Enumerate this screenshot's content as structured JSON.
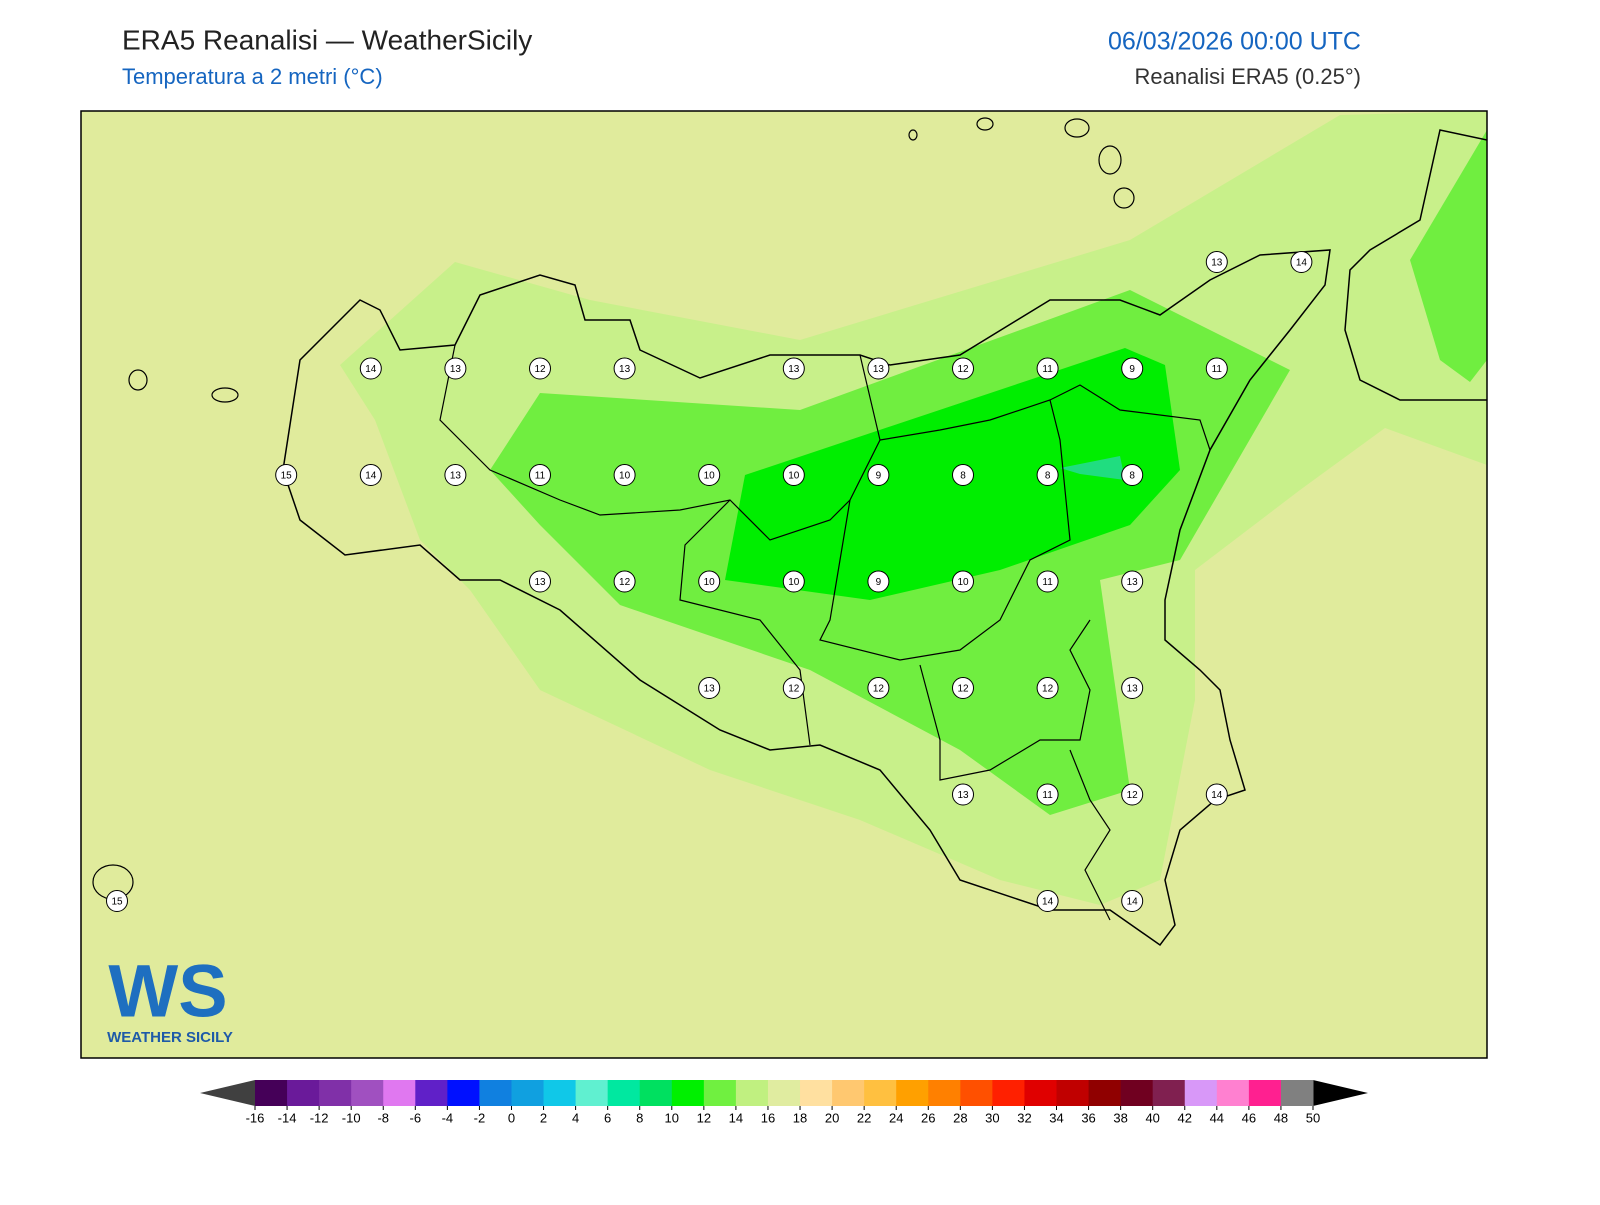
{
  "header": {
    "title": "ERA5 Reanalisi — WeatherSicily",
    "subtitle": "Temperatura a 2 metri (°C)",
    "datetime": "06/03/2026 00:00 UTC",
    "source": "Reanalisi ERA5 (0.25°)"
  },
  "stations": {
    "rows": [
      [
        null,
        null,
        null,
        null,
        null,
        null,
        null,
        null,
        null,
        null,
        null,
        null,
        null,
        13,
        14
      ],
      [
        null,
        null,
        null,
        14,
        13,
        12,
        13,
        null,
        13,
        13,
        12,
        11,
        9,
        11,
        null
      ],
      [
        null,
        null,
        15,
        14,
        13,
        11,
        10,
        10,
        10,
        9,
        8,
        8,
        8,
        null,
        null
      ],
      [
        null,
        null,
        null,
        null,
        null,
        13,
        12,
        10,
        10,
        9,
        10,
        11,
        13,
        null,
        null
      ],
      [
        null,
        null,
        null,
        null,
        null,
        null,
        null,
        13,
        12,
        12,
        12,
        12,
        13,
        null,
        null
      ],
      [
        null,
        null,
        null,
        null,
        null,
        null,
        null,
        null,
        null,
        null,
        13,
        11,
        12,
        14,
        null
      ],
      [
        15,
        null,
        null,
        null,
        null,
        null,
        null,
        null,
        null,
        null,
        null,
        14,
        14,
        null,
        null
      ]
    ]
  },
  "colorbar": {
    "ticks": [
      -16,
      -14,
      -12,
      -10,
      -8,
      -6,
      -4,
      -2,
      0,
      2,
      4,
      6,
      8,
      10,
      12,
      14,
      16,
      18,
      20,
      22,
      24,
      26,
      28,
      30,
      32,
      34,
      36,
      38,
      40,
      42,
      44,
      46,
      48,
      50
    ],
    "colors": [
      "#450058",
      "#6a1a9a",
      "#8030a8",
      "#a050c0",
      "#e078f0",
      "#6020c8",
      "#0010ff",
      "#1080e0",
      "#10a0e0",
      "#10c8e8",
      "#60f0d0",
      "#00e8a0",
      "#00e060",
      "#00f000",
      "#70f040",
      "#c0f080",
      "#e0eca0",
      "#ffe0a0",
      "#ffc870",
      "#ffc040",
      "#ffa000",
      "#ff8000",
      "#ff5000",
      "#ff2000",
      "#e00000",
      "#c00000",
      "#900000",
      "#700020",
      "#802050",
      "#d898f8",
      "#ff80d0",
      "#ff2090",
      "#808080"
    ],
    "under": "#404040",
    "over": "#000000"
  },
  "logo": {
    "mark": "WS",
    "text": "WEATHER SICILY"
  }
}
